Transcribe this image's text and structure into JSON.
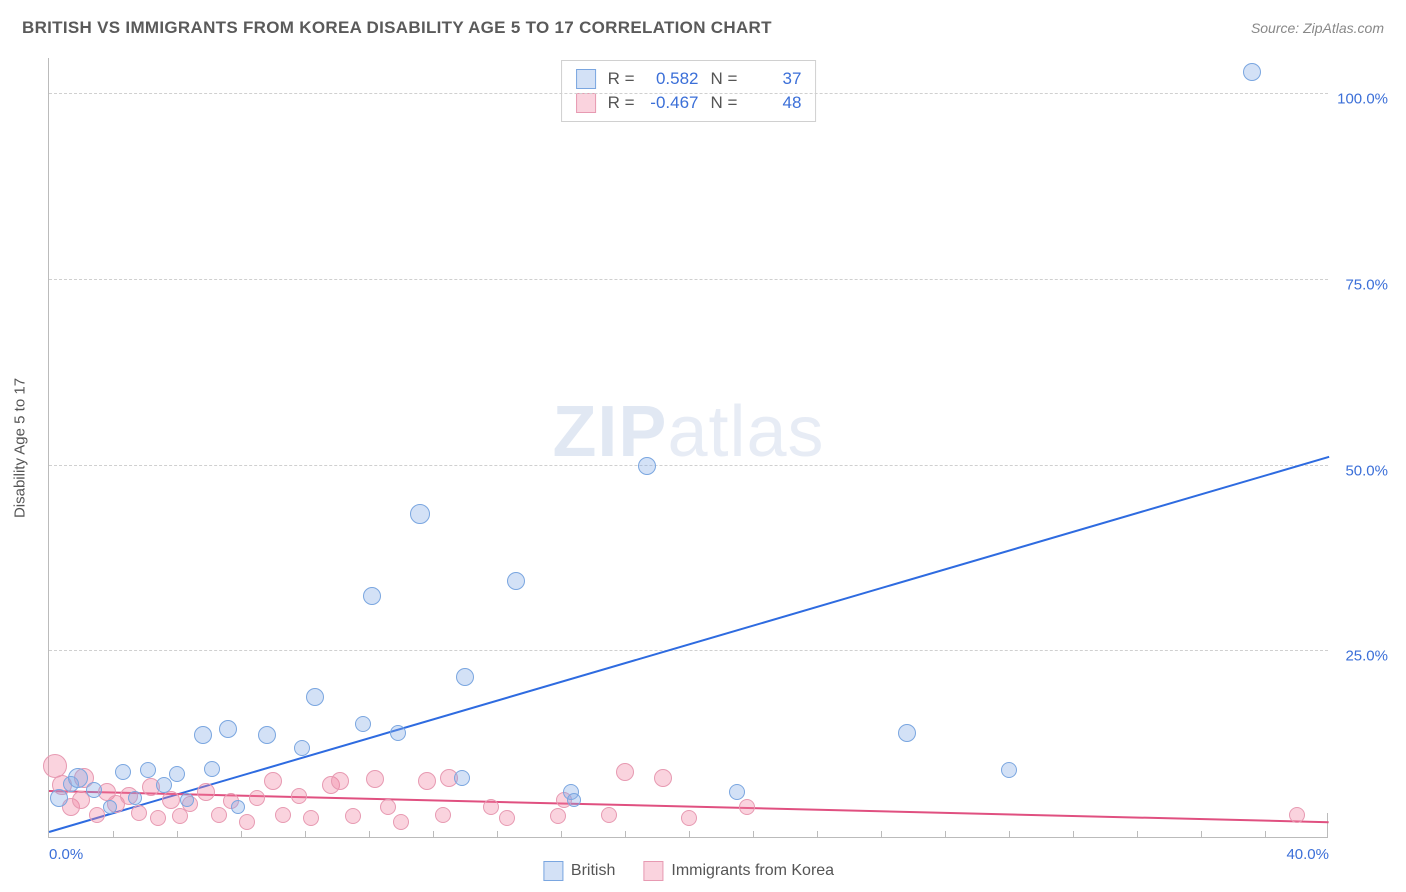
{
  "header": {
    "title": "BRITISH VS IMMIGRANTS FROM KOREA DISABILITY AGE 5 TO 17 CORRELATION CHART",
    "source": "Source: ZipAtlas.com"
  },
  "chart": {
    "type": "scatter",
    "y_axis_label": "Disability Age 5 to 17",
    "watermark": {
      "bold": "ZIP",
      "rest": "atlas"
    },
    "xlim": [
      0,
      40
    ],
    "ylim": [
      0,
      105
    ],
    "x_ticks": [
      0,
      40
    ],
    "x_tick_labels": [
      "0.0%",
      "40.0%"
    ],
    "x_minor_ticks": [
      2,
      4,
      6,
      8,
      10,
      12,
      14,
      16,
      18,
      20,
      22,
      24,
      26,
      28,
      30,
      32,
      34,
      36,
      38
    ],
    "y_ticks": [
      25,
      50,
      75,
      100
    ],
    "y_tick_labels": [
      "25.0%",
      "50.0%",
      "75.0%",
      "100.0%"
    ],
    "grid_color": "#d0d0d0",
    "background_color": "#ffffff",
    "axis_label_color": "#3b6fd8",
    "series": {
      "british": {
        "label": "British",
        "fill": "rgba(130,170,230,0.35)",
        "stroke": "#7aa6e0",
        "line_color": "#2e6be0",
        "R": "0.582",
        "N": "37",
        "trend": {
          "x1": 0,
          "y1": 0.5,
          "x2": 40,
          "y2": 51
        },
        "points": [
          {
            "x": 0.3,
            "y": 5.2,
            "r": 9
          },
          {
            "x": 0.7,
            "y": 7.1,
            "r": 8
          },
          {
            "x": 0.9,
            "y": 8.0,
            "r": 10
          },
          {
            "x": 1.4,
            "y": 6.3,
            "r": 8
          },
          {
            "x": 1.9,
            "y": 4.1,
            "r": 7
          },
          {
            "x": 2.3,
            "y": 8.8,
            "r": 8
          },
          {
            "x": 2.7,
            "y": 5.2,
            "r": 7
          },
          {
            "x": 3.1,
            "y": 9.0,
            "r": 8
          },
          {
            "x": 3.6,
            "y": 7.0,
            "r": 8
          },
          {
            "x": 4.0,
            "y": 8.5,
            "r": 8
          },
          {
            "x": 4.3,
            "y": 5.0,
            "r": 7
          },
          {
            "x": 4.8,
            "y": 13.8,
            "r": 9
          },
          {
            "x": 5.1,
            "y": 9.2,
            "r": 8
          },
          {
            "x": 5.6,
            "y": 14.5,
            "r": 9
          },
          {
            "x": 5.9,
            "y": 4.0,
            "r": 7
          },
          {
            "x": 6.8,
            "y": 13.8,
            "r": 9
          },
          {
            "x": 7.9,
            "y": 12.0,
            "r": 8
          },
          {
            "x": 8.3,
            "y": 18.8,
            "r": 9
          },
          {
            "x": 9.8,
            "y": 15.2,
            "r": 8
          },
          {
            "x": 10.1,
            "y": 32.5,
            "r": 9
          },
          {
            "x": 10.9,
            "y": 14.0,
            "r": 8
          },
          {
            "x": 11.6,
            "y": 43.5,
            "r": 10
          },
          {
            "x": 12.9,
            "y": 8.0,
            "r": 8
          },
          {
            "x": 13.0,
            "y": 21.5,
            "r": 9
          },
          {
            "x": 14.6,
            "y": 34.5,
            "r": 9
          },
          {
            "x": 16.3,
            "y": 6.0,
            "r": 8
          },
          {
            "x": 16.4,
            "y": 5.0,
            "r": 7
          },
          {
            "x": 18.7,
            "y": 50.0,
            "r": 9
          },
          {
            "x": 21.5,
            "y": 6.0,
            "r": 8
          },
          {
            "x": 26.8,
            "y": 14.0,
            "r": 9
          },
          {
            "x": 30.0,
            "y": 9.0,
            "r": 8
          },
          {
            "x": 37.6,
            "y": 103.0,
            "r": 9
          }
        ]
      },
      "korea": {
        "label": "Immigrants from Korea",
        "fill": "rgba(240,130,160,0.35)",
        "stroke": "#e79ab2",
        "line_color": "#e05080",
        "R": "-0.467",
        "N": "48",
        "trend": {
          "x1": 0,
          "y1": 6.0,
          "x2": 40,
          "y2": 1.8
        },
        "points": [
          {
            "x": 0.2,
            "y": 9.5,
            "r": 12
          },
          {
            "x": 0.4,
            "y": 7.0,
            "r": 10
          },
          {
            "x": 0.7,
            "y": 4.0,
            "r": 9
          },
          {
            "x": 1.0,
            "y": 5.0,
            "r": 9
          },
          {
            "x": 1.1,
            "y": 8.0,
            "r": 10
          },
          {
            "x": 1.5,
            "y": 3.0,
            "r": 8
          },
          {
            "x": 1.8,
            "y": 6.0,
            "r": 9
          },
          {
            "x": 2.1,
            "y": 4.5,
            "r": 9
          },
          {
            "x": 2.5,
            "y": 5.5,
            "r": 9
          },
          {
            "x": 2.8,
            "y": 3.2,
            "r": 8
          },
          {
            "x": 3.2,
            "y": 6.8,
            "r": 9
          },
          {
            "x": 3.4,
            "y": 2.5,
            "r": 8
          },
          {
            "x": 3.8,
            "y": 5.0,
            "r": 9
          },
          {
            "x": 4.1,
            "y": 2.8,
            "r": 8
          },
          {
            "x": 4.4,
            "y": 4.5,
            "r": 8
          },
          {
            "x": 4.9,
            "y": 6.0,
            "r": 9
          },
          {
            "x": 5.3,
            "y": 3.0,
            "r": 8
          },
          {
            "x": 5.7,
            "y": 4.8,
            "r": 8
          },
          {
            "x": 6.2,
            "y": 2.0,
            "r": 8
          },
          {
            "x": 6.5,
            "y": 5.2,
            "r": 8
          },
          {
            "x": 7.0,
            "y": 7.5,
            "r": 9
          },
          {
            "x": 7.3,
            "y": 3.0,
            "r": 8
          },
          {
            "x": 7.8,
            "y": 5.5,
            "r": 8
          },
          {
            "x": 8.2,
            "y": 2.5,
            "r": 8
          },
          {
            "x": 8.8,
            "y": 7.0,
            "r": 9
          },
          {
            "x": 9.1,
            "y": 7.5,
            "r": 9
          },
          {
            "x": 9.5,
            "y": 2.8,
            "r": 8
          },
          {
            "x": 10.2,
            "y": 7.8,
            "r": 9
          },
          {
            "x": 10.6,
            "y": 4.0,
            "r": 8
          },
          {
            "x": 11.0,
            "y": 2.0,
            "r": 8
          },
          {
            "x": 11.8,
            "y": 7.5,
            "r": 9
          },
          {
            "x": 12.3,
            "y": 3.0,
            "r": 8
          },
          {
            "x": 12.5,
            "y": 8.0,
            "r": 9
          },
          {
            "x": 13.8,
            "y": 4.0,
            "r": 8
          },
          {
            "x": 14.3,
            "y": 2.5,
            "r": 8
          },
          {
            "x": 15.9,
            "y": 2.8,
            "r": 8
          },
          {
            "x": 16.1,
            "y": 5.0,
            "r": 8
          },
          {
            "x": 17.5,
            "y": 3.0,
            "r": 8
          },
          {
            "x": 18.0,
            "y": 8.8,
            "r": 9
          },
          {
            "x": 19.2,
            "y": 8.0,
            "r": 9
          },
          {
            "x": 20.0,
            "y": 2.5,
            "r": 8
          },
          {
            "x": 21.8,
            "y": 4.0,
            "r": 8
          },
          {
            "x": 39.0,
            "y": 3.0,
            "r": 8
          }
        ]
      }
    },
    "legend_top": {
      "r_label": "R =",
      "n_label": "N ="
    }
  }
}
